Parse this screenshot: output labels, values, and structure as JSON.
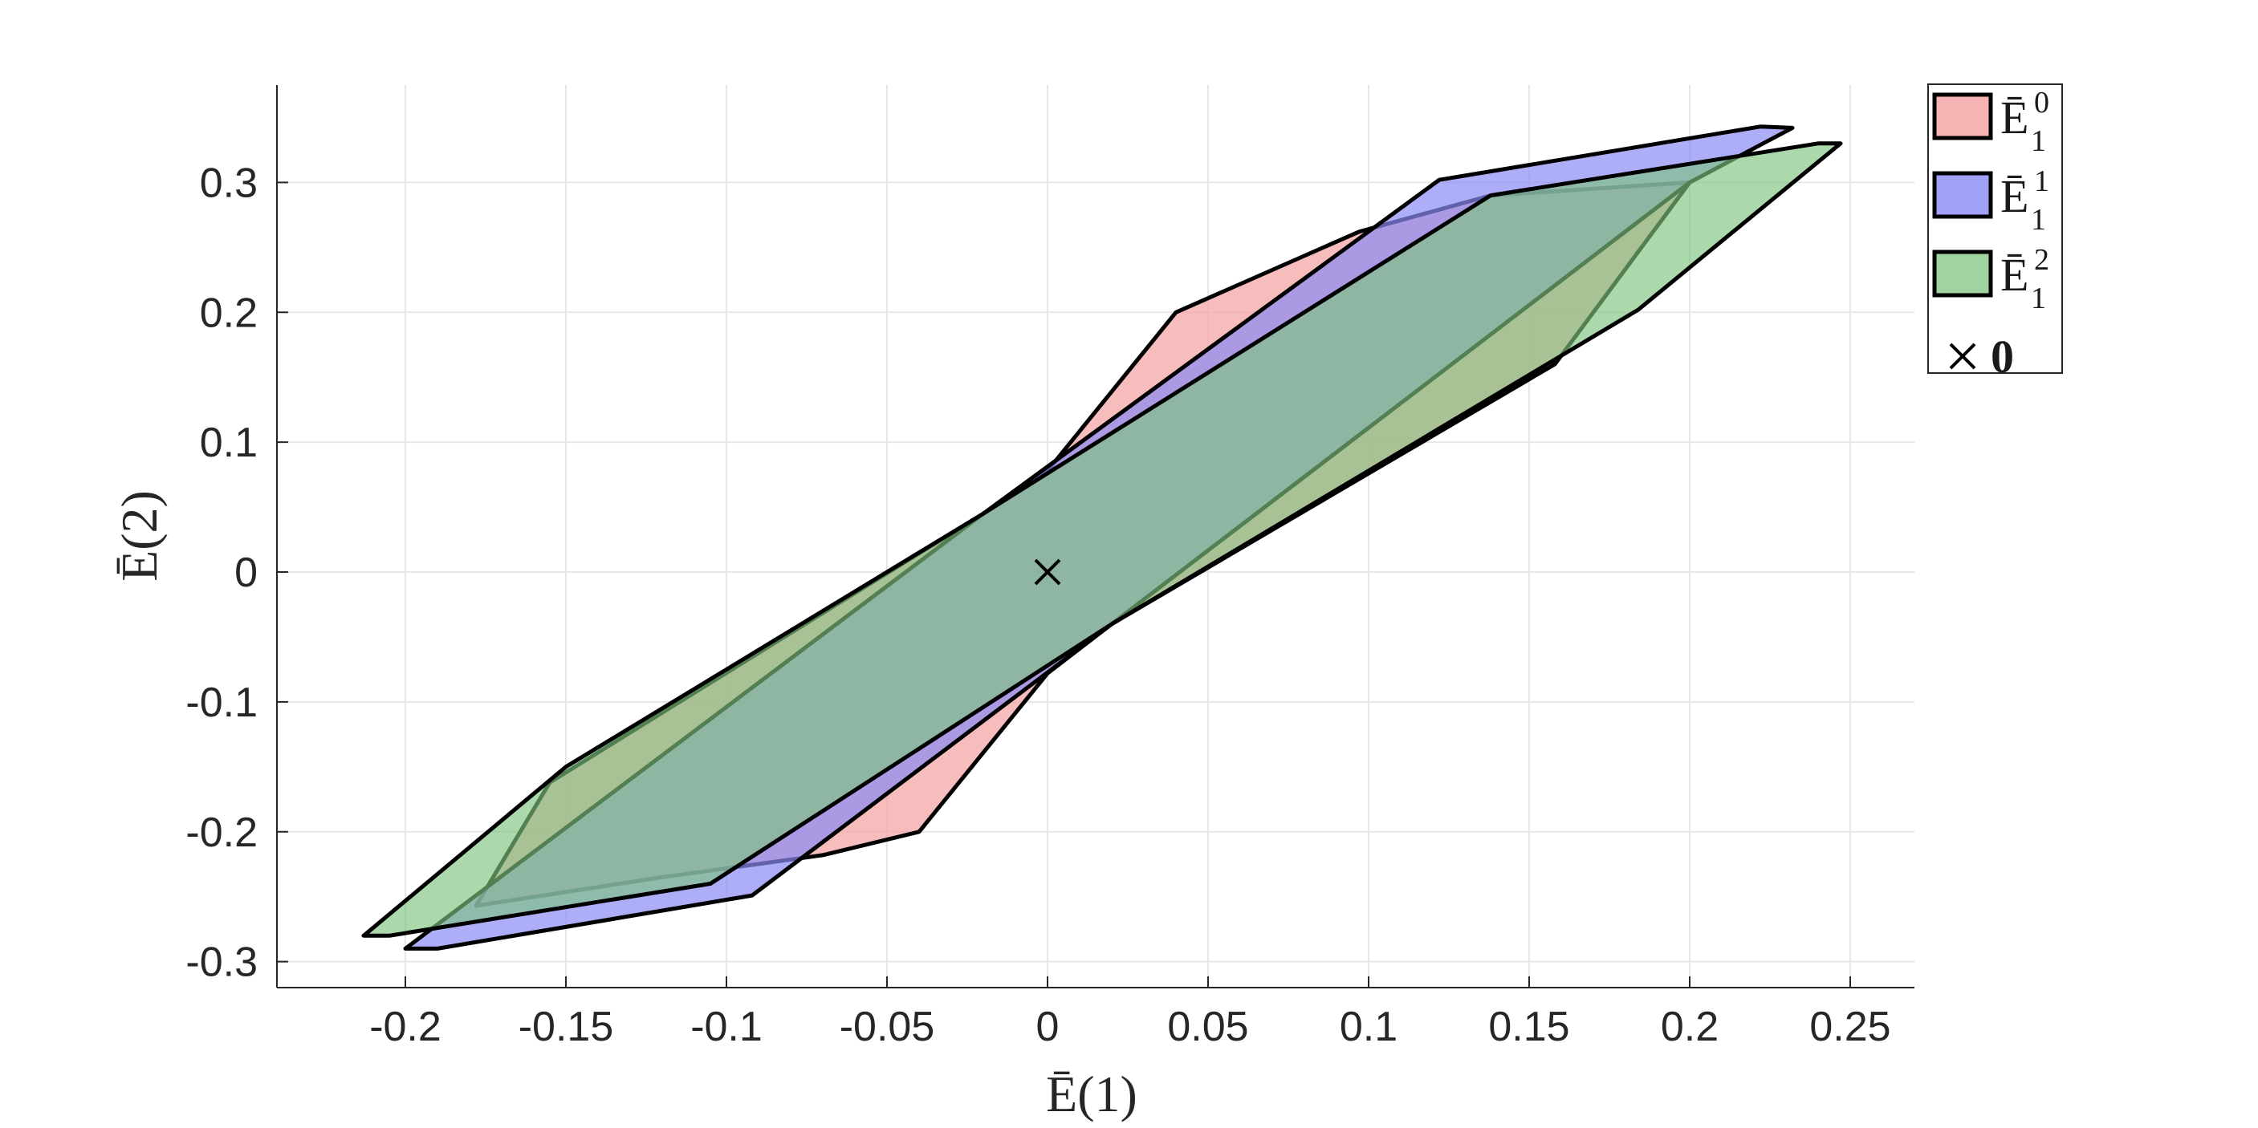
{
  "chart_data": {
    "type": "area",
    "xlabel": "Ē(1)",
    "ylabel": "Ē(2)",
    "xlim": [
      -0.24,
      0.27
    ],
    "ylim": [
      -0.32,
      0.375
    ],
    "xticks": [
      -0.2,
      -0.15,
      -0.1,
      -0.05,
      0,
      0.05,
      0.1,
      0.15,
      0.2,
      0.25
    ],
    "xtick_labels": [
      "-0.2",
      "-0.15",
      "-0.1",
      "-0.05",
      "0",
      "0.05",
      "0.1",
      "0.15",
      "0.2",
      "0.25"
    ],
    "yticks": [
      0.3,
      0.2,
      0.1,
      0,
      -0.1,
      -0.2,
      -0.3
    ],
    "ytick_labels": [
      "0.3",
      "0.2",
      "0.1",
      "0",
      "-0.1",
      "-0.2",
      "-0.3"
    ],
    "grid": true,
    "legend_position": "outside-top-right",
    "series": [
      {
        "name": "Ē",
        "sup": "0",
        "sub": "1",
        "color": "#f4a6a6",
        "opacity": 0.75,
        "polygon": [
          [
            -0.07,
            -0.218
          ],
          [
            -0.04,
            -0.2
          ],
          [
            0.0,
            -0.078
          ],
          [
            0.02,
            -0.04
          ],
          [
            0.158,
            0.16
          ],
          [
            0.2,
            0.3
          ],
          [
            0.138,
            0.29
          ],
          [
            0.097,
            0.262
          ],
          [
            0.04,
            0.2
          ],
          [
            0.0,
            0.078
          ],
          [
            -0.02,
            0.045
          ],
          [
            -0.155,
            -0.162
          ],
          [
            -0.178,
            -0.257
          ],
          [
            -0.12,
            -0.235
          ]
        ]
      },
      {
        "name": "Ē",
        "sup": "1",
        "sub": "1",
        "color": "#8a8af5",
        "opacity": 0.7,
        "polygon": [
          [
            -0.2,
            -0.29
          ],
          [
            -0.19,
            -0.29
          ],
          [
            -0.092,
            -0.249
          ],
          [
            0.02,
            -0.04
          ],
          [
            0.2,
            0.3
          ],
          [
            0.232,
            0.342
          ],
          [
            0.222,
            0.343
          ],
          [
            0.122,
            0.302
          ],
          [
            -0.02,
            0.045
          ]
        ]
      },
      {
        "name": "Ē",
        "sup": "2",
        "sub": "1",
        "color": "#7fc47f",
        "opacity": 0.65,
        "polygon": [
          [
            -0.213,
            -0.28
          ],
          [
            -0.205,
            -0.28
          ],
          [
            -0.105,
            -0.24
          ],
          [
            0.02,
            -0.04
          ],
          [
            0.184,
            0.202
          ],
          [
            0.247,
            0.33
          ],
          [
            0.24,
            0.33
          ],
          [
            0.138,
            0.29
          ],
          [
            -0.02,
            0.045
          ],
          [
            -0.15,
            -0.15
          ]
        ]
      },
      {
        "name": "0",
        "marker": "x",
        "color": "#000000",
        "x": [
          0
        ],
        "y": [
          0
        ]
      }
    ]
  }
}
